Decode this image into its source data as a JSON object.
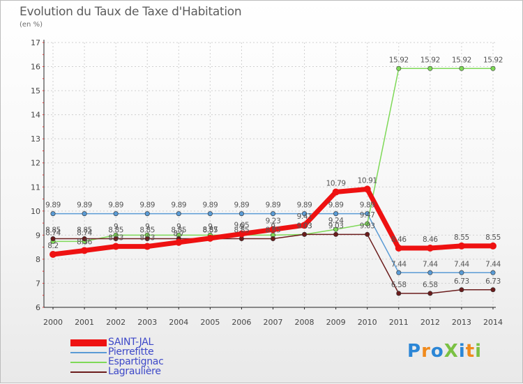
{
  "chart_data": {
    "type": "line",
    "title": "Evolution du Taux de Taxe d'Habitation",
    "subtitle": "(en %)",
    "xlabel": "",
    "ylabel": "(en %)",
    "ylim": [
      6,
      17
    ],
    "yticks": [
      "6",
      "7",
      "8",
      "9",
      "10",
      "11",
      "12",
      "13",
      "14",
      "15",
      "16",
      "17"
    ],
    "categories": [
      "2000",
      "2001",
      "2002",
      "2003",
      "2004",
      "2005",
      "2006",
      "2007",
      "2008",
      "2009",
      "2010",
      "2011",
      "2012",
      "2013",
      "2014"
    ],
    "series": [
      {
        "name": "SAINT-JAL",
        "color": "#ee1111",
        "values": [
          8.2,
          8.36,
          8.53,
          8.53,
          8.7,
          8.87,
          9.05,
          9.23,
          9.41,
          10.79,
          10.91,
          8.46,
          8.46,
          8.55,
          8.55
        ],
        "labels": [
          "8.2",
          "8.36",
          "8.53",
          "8.53",
          "8.7",
          "8.87",
          "9.05",
          "9.23",
          "9.41",
          "10.79",
          "10.91",
          "8.46",
          "8.46",
          "8.55",
          "8.55"
        ]
      },
      {
        "name": "Pierrefitte",
        "color": "#5a9bd5",
        "values": [
          9.89,
          9.89,
          9.89,
          9.89,
          9.89,
          9.89,
          9.89,
          9.89,
          9.89,
          9.89,
          9.89,
          7.44,
          7.44,
          7.44,
          7.44
        ],
        "labels": [
          "9.89",
          "9.89",
          "9.89",
          "9.89",
          "9.89",
          "9.89",
          "9.89",
          "9.89",
          "9.89",
          "9.89",
          "9.89",
          "7.44",
          "7.44",
          "7.44",
          "7.44"
        ]
      },
      {
        "name": "Espartignac",
        "color": "#7ed957",
        "values": [
          8.74,
          8.74,
          9.0,
          9.0,
          9.0,
          9.0,
          9.0,
          9.0,
          9.03,
          9.24,
          9.47,
          15.92,
          15.92,
          15.92,
          15.92
        ],
        "labels": [
          "8.74",
          "8.74",
          "9",
          "9",
          "9",
          "9",
          "9",
          "9",
          "9.03",
          "9.24",
          "9.47",
          "15.92",
          "15.92",
          "15.92",
          "15.92"
        ]
      },
      {
        "name": "Lagraulière",
        "color": "#6b1c1c",
        "values": [
          8.85,
          8.85,
          8.85,
          8.85,
          8.85,
          8.85,
          8.85,
          8.85,
          9.03,
          9.03,
          9.03,
          6.58,
          6.58,
          6.73,
          6.73
        ],
        "labels": [
          "8.85",
          "8.85",
          "8.85",
          "8.85",
          "8.85",
          "8.85",
          "8.85",
          "8.85",
          "9.03",
          "9.03",
          "9.03",
          "6.58",
          "6.58",
          "6.73",
          "6.73"
        ]
      }
    ]
  },
  "logo": {
    "text": "ProXiti"
  }
}
